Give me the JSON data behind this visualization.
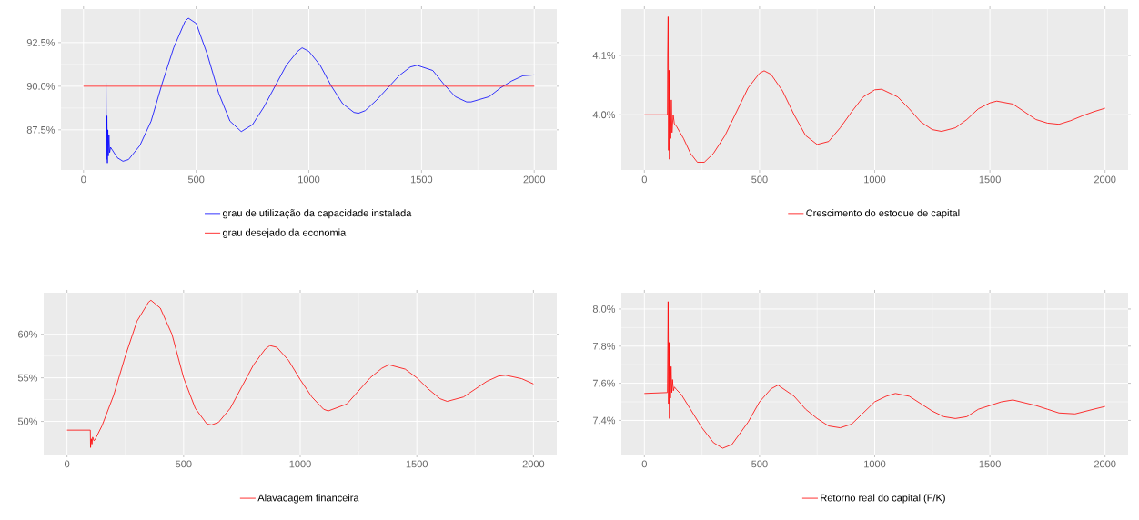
{
  "chart_data": [
    {
      "type": "line",
      "xlim": [
        -100,
        2100
      ],
      "xticks": [
        0,
        500,
        1000,
        1500,
        2000
      ],
      "ylim": [
        85.2,
        94.42
      ],
      "yticks": [
        {
          "value": 87.5,
          "label": "87.5%"
        },
        {
          "value": 90.0,
          "label": "90.0%"
        },
        {
          "value": 92.5,
          "label": "92.5%"
        }
      ],
      "grid": true,
      "legend": "bottom",
      "series": [
        {
          "name": "grau de utilização da capacidade instalada",
          "color": "#0000ff",
          "x": [
            100,
            102,
            104,
            106,
            108,
            110,
            113,
            116,
            120,
            130,
            150,
            175,
            200,
            250,
            300,
            350,
            400,
            450,
            465,
            500,
            550,
            600,
            650,
            700,
            750,
            800,
            850,
            900,
            950,
            970,
            1000,
            1050,
            1100,
            1150,
            1200,
            1220,
            1250,
            1300,
            1350,
            1400,
            1450,
            1480,
            1550,
            1600,
            1650,
            1700,
            1720,
            1800,
            1850,
            1900,
            1950,
            2000
          ],
          "values": [
            90.2,
            85.8,
            88.3,
            85.6,
            87.5,
            86.0,
            87.2,
            86.2,
            86.5,
            86.3,
            85.9,
            85.7,
            85.8,
            86.6,
            88.0,
            90.2,
            92.2,
            93.7,
            93.9,
            93.6,
            91.8,
            89.6,
            88.0,
            87.4,
            87.8,
            88.8,
            90.0,
            91.2,
            92.0,
            92.2,
            92.0,
            91.2,
            90.0,
            89.0,
            88.5,
            88.45,
            88.6,
            89.2,
            89.9,
            90.6,
            91.1,
            91.2,
            90.9,
            90.1,
            89.4,
            89.1,
            89.1,
            89.4,
            89.9,
            90.3,
            90.6,
            90.65
          ]
        },
        {
          "name": "grau desejado da economia",
          "color": "#ff0000",
          "x": [
            0,
            2000
          ],
          "values": [
            90.0,
            90.0
          ]
        }
      ]
    },
    {
      "type": "line",
      "xlim": [
        -100,
        2100
      ],
      "xticks": [
        0,
        500,
        1000,
        1500,
        2000
      ],
      "ylim": [
        3.907,
        4.178
      ],
      "yticks": [
        {
          "value": 4.0,
          "label": "4.0%"
        },
        {
          "value": 4.1,
          "label": "4.1%"
        }
      ],
      "grid": true,
      "legend": "bottom",
      "series": [
        {
          "name": "Crescimento do estoque de capital",
          "color": "#ff0000",
          "x": [
            0,
            100,
            101,
            103,
            105,
            107,
            109,
            111,
            114,
            117,
            120,
            125,
            130,
            140,
            170,
            200,
            230,
            260,
            300,
            350,
            400,
            450,
            500,
            520,
            550,
            600,
            650,
            700,
            750,
            800,
            850,
            900,
            950,
            1000,
            1030,
            1100,
            1150,
            1200,
            1250,
            1290,
            1350,
            1400,
            1450,
            1500,
            1530,
            1600,
            1650,
            1700,
            1750,
            1800,
            1850,
            1900,
            1950,
            2000
          ],
          "values": [
            4.0,
            4.0,
            4.1,
            4.165,
            3.94,
            4.075,
            3.925,
            4.03,
            3.96,
            4.025,
            3.97,
            4.0,
            3.985,
            3.98,
            3.96,
            3.935,
            3.92,
            3.92,
            3.935,
            3.965,
            4.005,
            4.045,
            4.07,
            4.074,
            4.068,
            4.04,
            4.0,
            3.965,
            3.95,
            3.955,
            3.978,
            4.005,
            4.03,
            4.042,
            4.043,
            4.03,
            4.01,
            3.988,
            3.975,
            3.972,
            3.978,
            3.992,
            4.01,
            4.02,
            4.023,
            4.018,
            4.005,
            3.992,
            3.986,
            3.984,
            3.99,
            3.998,
            4.005,
            4.011
          ]
        }
      ]
    },
    {
      "type": "line",
      "xlim": [
        -100,
        2100
      ],
      "xticks": [
        0,
        500,
        1000,
        1500,
        2000
      ],
      "ylim": [
        46.2,
        64.77
      ],
      "yticks": [
        {
          "value": 50,
          "label": "50%"
        },
        {
          "value": 55,
          "label": "55%"
        },
        {
          "value": 60,
          "label": "60%"
        }
      ],
      "grid": true,
      "legend": "bottom",
      "series": [
        {
          "name": "Alavacagem financeira",
          "color": "#ff0000",
          "x": [
            0,
            100,
            101,
            104,
            107,
            110,
            115,
            120,
            150,
            200,
            250,
            300,
            350,
            360,
            400,
            450,
            500,
            550,
            600,
            620,
            650,
            700,
            750,
            800,
            850,
            870,
            900,
            950,
            1000,
            1050,
            1100,
            1120,
            1200,
            1250,
            1300,
            1350,
            1380,
            1450,
            1500,
            1550,
            1600,
            1630,
            1700,
            1750,
            1800,
            1850,
            1880,
            1950,
            2000
          ],
          "values": [
            49.0,
            49.0,
            47.0,
            48.0,
            47.4,
            48.2,
            47.8,
            47.9,
            49.5,
            53.0,
            57.5,
            61.5,
            63.7,
            63.9,
            63.0,
            60.0,
            55.0,
            51.5,
            49.7,
            49.6,
            49.9,
            51.5,
            54.0,
            56.5,
            58.3,
            58.7,
            58.5,
            57.0,
            54.8,
            52.8,
            51.4,
            51.2,
            52.0,
            53.5,
            55.0,
            56.1,
            56.5,
            56.0,
            55.0,
            53.7,
            52.6,
            52.3,
            52.8,
            53.7,
            54.6,
            55.2,
            55.3,
            54.9,
            54.3
          ]
        }
      ]
    },
    {
      "type": "line",
      "xlim": [
        -100,
        2100
      ],
      "xticks": [
        0,
        500,
        1000,
        1500,
        2000
      ],
      "ylim": [
        7.216,
        8.088
      ],
      "yticks": [
        {
          "value": 7.4,
          "label": "7.4%"
        },
        {
          "value": 7.6,
          "label": "7.6%"
        },
        {
          "value": 7.8,
          "label": "7.8%"
        },
        {
          "value": 8.0,
          "label": "8.0%"
        }
      ],
      "grid": true,
      "legend": "bottom",
      "series": [
        {
          "name": "Retorno real do capital (F/K)",
          "color": "#ff0000",
          "x": [
            0,
            100,
            101,
            103,
            105,
            107,
            109,
            111,
            113,
            116,
            119,
            122,
            126,
            130,
            140,
            160,
            200,
            250,
            300,
            340,
            380,
            450,
            500,
            550,
            580,
            650,
            700,
            750,
            800,
            850,
            900,
            950,
            1000,
            1050,
            1090,
            1150,
            1200,
            1250,
            1300,
            1350,
            1400,
            1450,
            1500,
            1550,
            1600,
            1700,
            1750,
            1800,
            1870,
            1950,
            2000
          ],
          "values": [
            7.545,
            7.55,
            7.7,
            8.04,
            7.49,
            7.82,
            7.41,
            7.74,
            7.52,
            7.69,
            7.55,
            7.62,
            7.56,
            7.58,
            7.565,
            7.54,
            7.46,
            7.36,
            7.28,
            7.25,
            7.27,
            7.39,
            7.5,
            7.57,
            7.59,
            7.53,
            7.46,
            7.41,
            7.37,
            7.36,
            7.38,
            7.44,
            7.5,
            7.53,
            7.545,
            7.53,
            7.49,
            7.45,
            7.42,
            7.41,
            7.42,
            7.46,
            7.48,
            7.5,
            7.51,
            7.48,
            7.46,
            7.44,
            7.435,
            7.46,
            7.475
          ]
        }
      ]
    }
  ]
}
